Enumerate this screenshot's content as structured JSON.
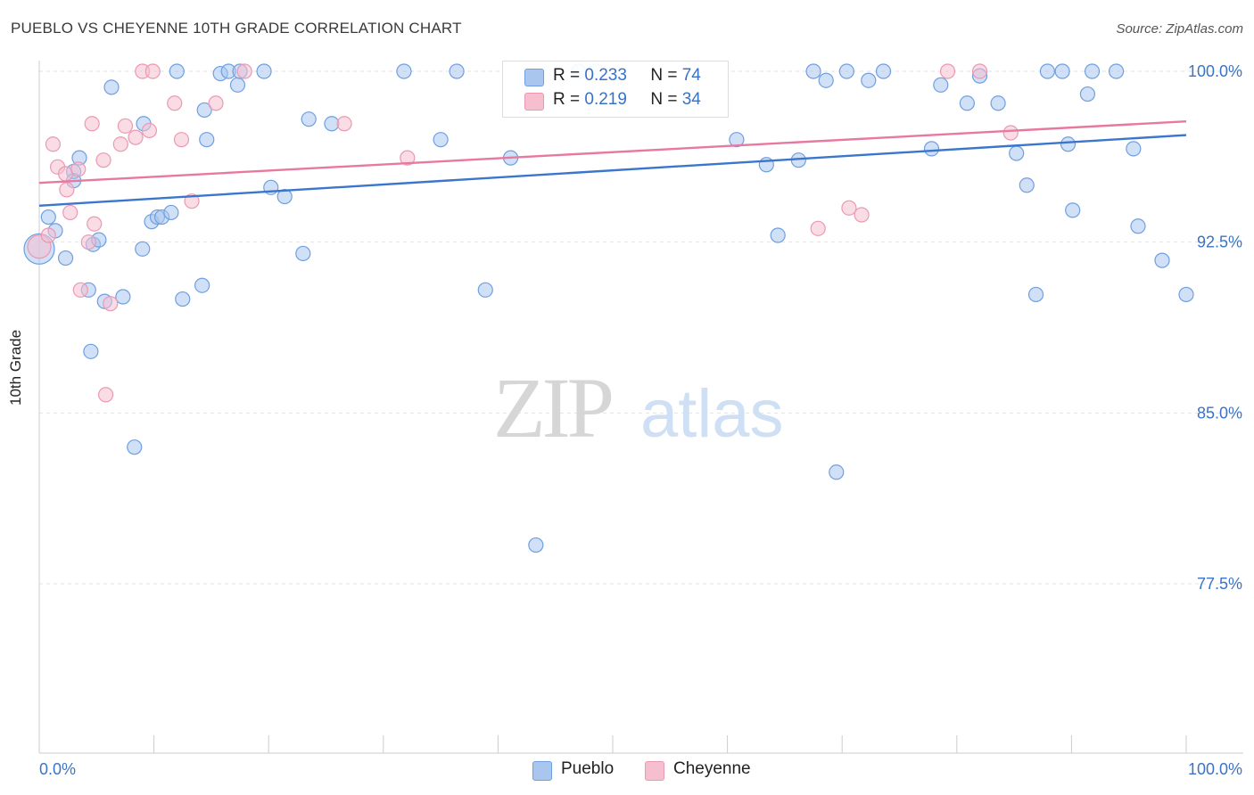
{
  "title": "PUEBLO VS CHEYENNE 10TH GRADE CORRELATION CHART",
  "source": "Source: ZipAtlas.com",
  "watermark": {
    "zip": "ZIP",
    "atlas": "atlas"
  },
  "stats": [
    {
      "r_label": "R =",
      "r_value": "0.233",
      "n_label": "N =",
      "n_value": "74"
    },
    {
      "r_label": "R =",
      "r_value": "0.219",
      "n_label": "N =",
      "n_value": "34"
    }
  ],
  "legend": [
    {
      "label": "Pueblo"
    },
    {
      "label": "Cheyenne"
    }
  ],
  "chart_data": {
    "type": "scatter",
    "title": "PUEBLO VS CHEYENNE 10TH GRADE CORRELATION CHART",
    "xlabel": "",
    "ylabel": "10th Grade",
    "xlim": [
      0,
      100
    ],
    "ylim": [
      70.0,
      101.0
    ],
    "x_tick_labels": [
      "0.0%",
      "100.0%"
    ],
    "y_ticks": [
      77.5,
      85.0,
      92.5,
      100.0
    ],
    "y_tick_labels": [
      "77.5%",
      "85.0%",
      "92.5%",
      "100.0%"
    ],
    "grid": true,
    "legend_position": "bottom",
    "colors": {
      "pueblo_fill": "#a9c6ef",
      "pueblo_stroke": "#6f9fe0",
      "pueblo_line": "#3a76cc",
      "cheyenne_fill": "#f6bfd0",
      "cheyenne_stroke": "#eb98b3",
      "cheyenne_line": "#e8799e",
      "tick_label": "#3b73c8"
    },
    "series": [
      {
        "name": "Pueblo",
        "trend": [
          [
            0,
            94.1
          ],
          [
            100,
            97.2
          ]
        ],
        "points": [
          [
            0.0,
            92.2,
            17
          ],
          [
            0.8,
            93.6,
            8
          ],
          [
            1.4,
            93.0,
            8
          ],
          [
            2.3,
            91.8,
            8
          ],
          [
            3.0,
            95.6,
            8
          ],
          [
            3.0,
            95.2,
            8
          ],
          [
            3.5,
            96.2,
            8
          ],
          [
            4.3,
            90.4,
            8
          ],
          [
            4.5,
            87.7,
            8
          ],
          [
            4.7,
            92.4,
            8
          ],
          [
            5.2,
            92.6,
            8
          ],
          [
            5.7,
            89.9,
            8
          ],
          [
            6.3,
            99.3,
            8
          ],
          [
            7.3,
            90.1,
            8
          ],
          [
            8.3,
            83.5,
            8
          ],
          [
            9.0,
            92.2,
            8
          ],
          [
            9.1,
            97.7,
            8
          ],
          [
            9.8,
            93.4,
            8
          ],
          [
            10.3,
            93.6,
            8
          ],
          [
            10.7,
            93.6,
            8
          ],
          [
            11.5,
            93.8,
            8
          ],
          [
            12.0,
            100.0,
            8
          ],
          [
            12.5,
            90.0,
            8
          ],
          [
            14.2,
            90.6,
            8
          ],
          [
            14.4,
            98.3,
            8
          ],
          [
            14.6,
            97.0,
            8
          ],
          [
            15.8,
            99.9,
            8
          ],
          [
            16.5,
            100.0,
            8
          ],
          [
            17.3,
            99.4,
            8
          ],
          [
            17.5,
            100.0,
            8
          ],
          [
            19.6,
            100.0,
            8
          ],
          [
            20.2,
            94.9,
            8
          ],
          [
            21.4,
            94.5,
            8
          ],
          [
            23.0,
            92.0,
            8
          ],
          [
            23.5,
            97.9,
            8
          ],
          [
            25.5,
            97.7,
            8
          ],
          [
            31.8,
            100.0,
            8
          ],
          [
            35.0,
            97.0,
            8
          ],
          [
            36.4,
            100.0,
            8
          ],
          [
            38.9,
            90.4,
            8
          ],
          [
            41.1,
            96.2,
            8
          ],
          [
            43.3,
            79.2,
            8
          ],
          [
            47.0,
            100.0,
            8
          ],
          [
            48.5,
            100.0,
            8
          ],
          [
            60.8,
            97.0,
            8
          ],
          [
            63.4,
            95.9,
            8
          ],
          [
            64.4,
            92.8,
            8
          ],
          [
            66.2,
            96.1,
            8
          ],
          [
            67.5,
            100.0,
            8
          ],
          [
            68.6,
            99.6,
            8
          ],
          [
            69.5,
            82.4,
            8
          ],
          [
            70.4,
            100.0,
            8
          ],
          [
            72.3,
            99.6,
            8
          ],
          [
            73.6,
            100.0,
            8
          ],
          [
            77.8,
            96.6,
            8
          ],
          [
            78.6,
            99.4,
            8
          ],
          [
            80.9,
            98.6,
            8
          ],
          [
            82.0,
            99.8,
            8
          ],
          [
            83.6,
            98.6,
            8
          ],
          [
            85.2,
            96.4,
            8
          ],
          [
            86.1,
            95.0,
            8
          ],
          [
            86.9,
            90.2,
            8
          ],
          [
            87.9,
            100.0,
            8
          ],
          [
            89.2,
            100.0,
            8
          ],
          [
            89.7,
            96.8,
            8
          ],
          [
            90.1,
            93.9,
            8
          ],
          [
            91.4,
            99.0,
            8
          ],
          [
            91.8,
            100.0,
            8
          ],
          [
            93.9,
            100.0,
            8
          ],
          [
            95.4,
            96.6,
            8
          ],
          [
            95.8,
            93.2,
            8
          ],
          [
            97.9,
            91.7,
            8
          ],
          [
            100.0,
            90.2,
            8
          ],
          [
            34.5,
            95.3,
            0
          ]
        ]
      },
      {
        "name": "Cheyenne",
        "trend": [
          [
            0,
            95.1
          ],
          [
            100,
            97.8
          ]
        ],
        "points": [
          [
            0.0,
            92.3,
            13
          ],
          [
            0.8,
            92.8,
            8
          ],
          [
            1.2,
            96.8,
            8
          ],
          [
            1.6,
            95.8,
            8
          ],
          [
            2.3,
            95.5,
            8
          ],
          [
            2.4,
            94.8,
            8
          ],
          [
            2.7,
            93.8,
            8
          ],
          [
            3.4,
            95.7,
            8
          ],
          [
            3.6,
            90.4,
            8
          ],
          [
            4.3,
            92.5,
            8
          ],
          [
            4.6,
            97.7,
            8
          ],
          [
            4.8,
            93.3,
            8
          ],
          [
            5.6,
            96.1,
            8
          ],
          [
            5.8,
            85.8,
            8
          ],
          [
            6.2,
            89.8,
            8
          ],
          [
            7.1,
            96.8,
            8
          ],
          [
            7.5,
            97.6,
            8
          ],
          [
            8.4,
            97.1,
            8
          ],
          [
            9.0,
            100.0,
            8
          ],
          [
            9.6,
            97.4,
            8
          ],
          [
            9.9,
            100.0,
            8
          ],
          [
            11.8,
            98.6,
            8
          ],
          [
            12.4,
            97.0,
            8
          ],
          [
            13.3,
            94.3,
            8
          ],
          [
            15.4,
            98.6,
            8
          ],
          [
            17.9,
            100.0,
            8
          ],
          [
            26.6,
            97.7,
            8
          ],
          [
            32.1,
            96.2,
            8
          ],
          [
            67.9,
            93.1,
            8
          ],
          [
            70.6,
            94.0,
            8
          ],
          [
            71.7,
            93.7,
            8
          ],
          [
            79.2,
            100.0,
            8
          ],
          [
            82.0,
            100.0,
            8
          ],
          [
            84.7,
            97.3,
            8
          ]
        ]
      }
    ]
  }
}
